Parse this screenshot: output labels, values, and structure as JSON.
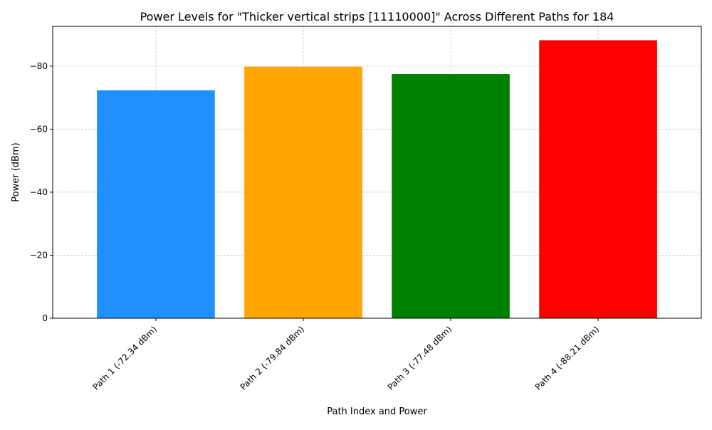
{
  "chart_data": {
    "type": "bar",
    "title": "Power Levels for \"Thicker vertical strips [11110000]\" Across Different Paths for 184",
    "xlabel": "Path Index and Power",
    "ylabel": "Power (dBm)",
    "categories": [
      "Path 1 (-72.34 dBm)",
      "Path 2 (-79.84 dBm)",
      "Path 3 (-77.48 dBm)",
      "Path 4 (-88.21 dBm)"
    ],
    "values": [
      -72.34,
      -79.84,
      -77.48,
      -88.21
    ],
    "colors": [
      "#1e90ff",
      "#ffa500",
      "#008000",
      "#ff0000"
    ],
    "ylim": [
      0,
      -92.623
    ],
    "y_inverted": true,
    "yticks": [
      0,
      -20,
      -40,
      -60,
      -80
    ],
    "ytick_labels": [
      "0",
      "−20",
      "−40",
      "−60",
      "−80"
    ],
    "grid": true
  }
}
